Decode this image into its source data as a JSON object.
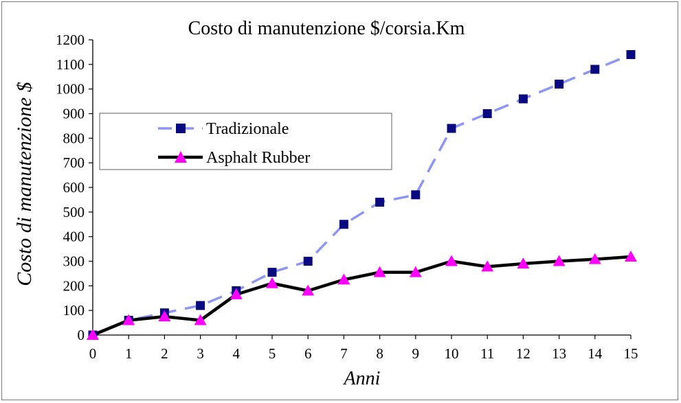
{
  "chart_data": {
    "type": "line",
    "title": "Costo di manutenzione $/corsia.Km",
    "xlabel": "Anni",
    "ylabel": "Costo di manutenzione $",
    "x": [
      0,
      1,
      2,
      3,
      4,
      5,
      6,
      7,
      8,
      9,
      10,
      11,
      12,
      13,
      14,
      15
    ],
    "xlim": [
      0,
      15
    ],
    "ylim": [
      0,
      1200
    ],
    "y_ticks": [
      0,
      100,
      200,
      300,
      400,
      500,
      600,
      700,
      800,
      900,
      1000,
      1100,
      1200
    ],
    "grid": false,
    "legend_position": "left",
    "series": [
      {
        "name": "Tradizionale",
        "color": "#8c96f5",
        "marker_color": "#0a0a80",
        "marker": "square",
        "line_style": "dashed",
        "values": [
          0,
          60,
          90,
          120,
          180,
          255,
          300,
          450,
          540,
          570,
          840,
          900,
          960,
          1020,
          1080,
          1140
        ]
      },
      {
        "name": "Asphalt Rubber",
        "color": "#000000",
        "marker_color": "#ff00ff",
        "marker": "triangle",
        "line_style": "solid",
        "values": [
          0,
          60,
          75,
          60,
          165,
          210,
          180,
          225,
          255,
          255,
          300,
          278,
          290,
          300,
          308,
          318
        ]
      }
    ]
  }
}
